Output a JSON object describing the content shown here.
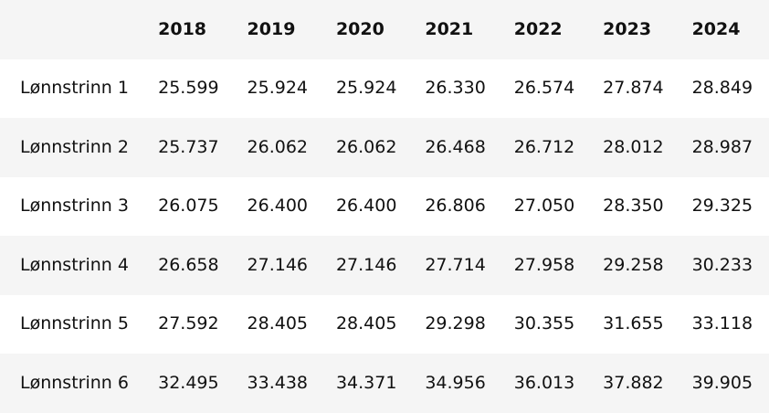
{
  "table": {
    "corner": "",
    "columns": [
      "2018",
      "2019",
      "2020",
      "2021",
      "2022",
      "2023",
      "2024"
    ],
    "rows": [
      {
        "label": "Lønnstrinn 1",
        "values": [
          "25.599",
          "25.924",
          "25.924",
          "26.330",
          "26.574",
          "27.874",
          "28.849"
        ]
      },
      {
        "label": "Lønnstrinn 2",
        "values": [
          "25.737",
          "26.062",
          "26.062",
          "26.468",
          "26.712",
          "28.012",
          "28.987"
        ]
      },
      {
        "label": "Lønnstrinn 3",
        "values": [
          "26.075",
          "26.400",
          "26.400",
          "26.806",
          "27.050",
          "28.350",
          "29.325"
        ]
      },
      {
        "label": "Lønnstrinn 4",
        "values": [
          "26.658",
          "27.146",
          "27.146",
          "27.714",
          "27.958",
          "29.258",
          "30.233"
        ]
      },
      {
        "label": "Lønnstrinn 5",
        "values": [
          "27.592",
          "28.405",
          "28.405",
          "29.298",
          "30.355",
          "31.655",
          "33.118"
        ]
      },
      {
        "label": "Lønnstrinn 6",
        "values": [
          "32.495",
          "33.438",
          "34.371",
          "34.956",
          "36.013",
          "37.882",
          "39.905"
        ]
      }
    ]
  }
}
